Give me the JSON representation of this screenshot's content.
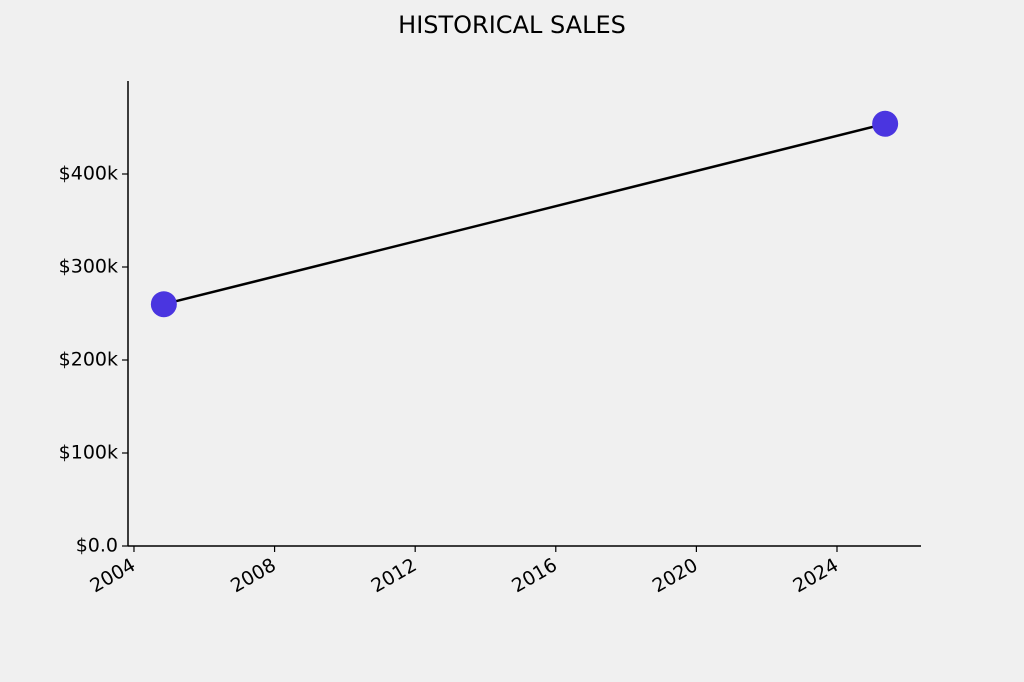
{
  "chart_data": {
    "type": "line",
    "title": "HISTORICAL SALES",
    "x": [
      2004.85,
      2025.37
    ],
    "values": [
      260000,
      454000
    ],
    "color": "#4a35e0",
    "line_color": "#000000",
    "xlim": [
      2003.83,
      2026.39
    ],
    "xticks": [
      2004,
      2008,
      2012,
      2016,
      2020,
      2024
    ],
    "ylim": [
      0,
      500000
    ],
    "yticks": [
      {
        "value": 0,
        "label": "$0.0"
      },
      {
        "value": 100000,
        "label": "$100k"
      },
      {
        "value": 200000,
        "label": "$200k"
      },
      {
        "value": 300000,
        "label": "$300k"
      },
      {
        "value": 400000,
        "label": "$400k"
      }
    ]
  }
}
